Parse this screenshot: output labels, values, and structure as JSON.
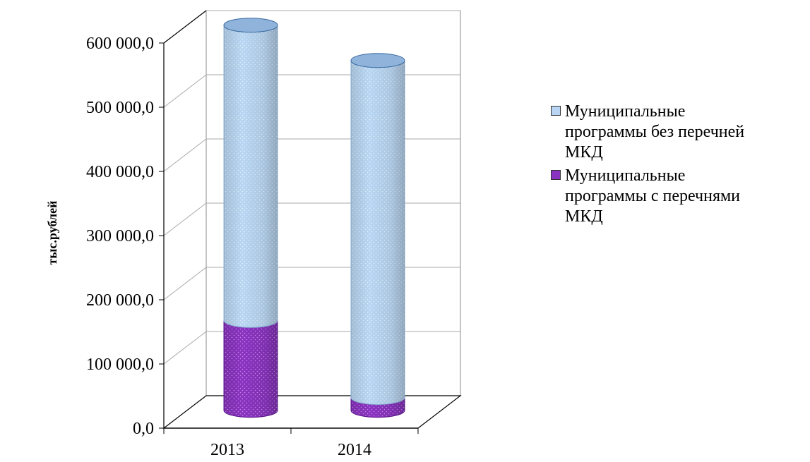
{
  "colors": {
    "series_without": "#b8d6f3",
    "series_without_dark": "#8fb3da",
    "series_with": "#8a33c1",
    "series_with_dark": "#5e1a8f",
    "grid": "#aaaaaa",
    "axis": "#000000"
  },
  "chart_data": {
    "type": "bar",
    "stacked": true,
    "style": "3d-cylinder",
    "categories": [
      "2013",
      "2014"
    ],
    "series": [
      {
        "name": "Муниципальные программы с перечнями МКД",
        "values": [
          140000,
          20000
        ]
      },
      {
        "name": "Муниципальные программы без перечней МКД",
        "values": [
          460000,
          525000
        ]
      }
    ],
    "ylabel": "тыс.рублей",
    "ylim": [
      0,
      600000
    ],
    "yticks": [
      "0,0",
      "100 000,0",
      "200 000,0",
      "300 000,0",
      "400 000,0",
      "500 000,0",
      "600 000,0"
    ],
    "grid": true,
    "legend_position": "right"
  },
  "legend": {
    "items": [
      {
        "lines": [
          "Муниципальные",
          "программы без перечней",
          "МКД"
        ],
        "color_key": "series_without"
      },
      {
        "lines": [
          "Муниципальные",
          "программы с перечнями",
          "МКД"
        ],
        "color_key": "series_with"
      }
    ]
  }
}
